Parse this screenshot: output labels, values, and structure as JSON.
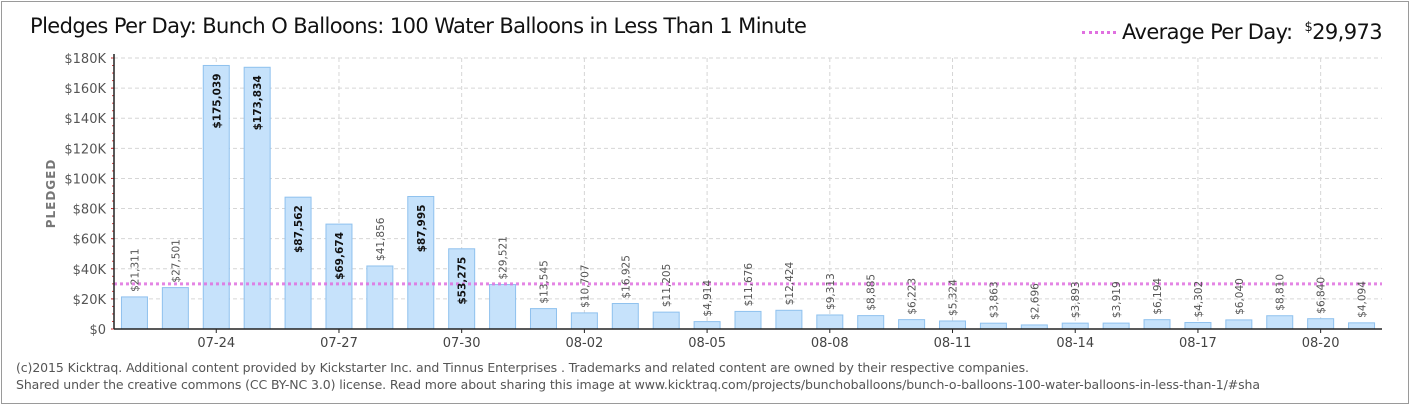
{
  "title": "Pledges Per Day: Bunch O Balloons: 100 Water Balloons in Less Than 1 Minute",
  "legend": {
    "label": "Average Per Day:",
    "currency": "$",
    "value": "29,973"
  },
  "footer": {
    "line1": "(c)2015 Kicktraq. Additional content provided by Kickstarter Inc. and  Tinnus Enterprises . Trademarks and related content are owned by their respective companies.",
    "line2": "Shared under the creative commons (CC BY-NC 3.0) license. Read more about sharing this image at www.kicktraq.com/projects/bunchoballoons/bunch-o-balloons-100-water-balloons-in-less-than-1/#sha"
  },
  "colors": {
    "bar_fill": "#c6e2fb",
    "bar_stroke": "#8fc1ee",
    "average_line": "#e070e0",
    "axis": "#222222",
    "grid": "#d6d6d6"
  },
  "chart_data": {
    "type": "bar",
    "title": "Pledges Per Day: Bunch O Balloons: 100 Water Balloons in Less Than 1 Minute",
    "ylabel": "PLEDGED",
    "xlabel": "",
    "ylim": [
      0,
      180000
    ],
    "yticks": [
      "$0",
      "$20K",
      "$40K",
      "$60K",
      "$80K",
      "$100K",
      "$120K",
      "$140K",
      "$160K",
      "$180K"
    ],
    "grid": true,
    "legend_position": "top-right",
    "average": 29973,
    "values": [
      21311,
      27501,
      175039,
      173834,
      87562,
      69674,
      41856,
      87995,
      53275,
      29521,
      13545,
      10707,
      16925,
      11205,
      4914,
      11676,
      12424,
      9313,
      8885,
      6223,
      5324,
      3863,
      2696,
      3893,
      3919,
      6194,
      4302,
      6040,
      8810,
      6840,
      4094
    ],
    "value_labels": [
      "$21,311",
      "$27,501",
      "$175,039",
      "$173,834",
      "$87,562",
      "$69,674",
      "$41,856",
      "$87,995",
      "$53,275",
      "$29,521",
      "$13,545",
      "$10,707",
      "$16,925",
      "$11,205",
      "$4,914",
      "$11,676",
      "$12,424",
      "$9,313",
      "$8,885",
      "$6,223",
      "$5,324",
      "$3,863",
      "$2,696",
      "$3,893",
      "$3,919",
      "$6,194",
      "$4,302",
      "$6,040",
      "$8,810",
      "$6,840",
      "$4,094"
    ],
    "label_inside": [
      false,
      false,
      true,
      true,
      true,
      true,
      false,
      true,
      true,
      false,
      false,
      false,
      false,
      false,
      false,
      false,
      false,
      false,
      false,
      false,
      false,
      false,
      false,
      false,
      false,
      false,
      false,
      false,
      false,
      false,
      false
    ],
    "x_tick_labels": [
      {
        "index": 2,
        "label": "07-24"
      },
      {
        "index": 5,
        "label": "07-27"
      },
      {
        "index": 8,
        "label": "07-30"
      },
      {
        "index": 11,
        "label": "08-02"
      },
      {
        "index": 14,
        "label": "08-05"
      },
      {
        "index": 17,
        "label": "08-08"
      },
      {
        "index": 20,
        "label": "08-11"
      },
      {
        "index": 23,
        "label": "08-14"
      },
      {
        "index": 26,
        "label": "08-17"
      },
      {
        "index": 29,
        "label": "08-20"
      }
    ]
  }
}
